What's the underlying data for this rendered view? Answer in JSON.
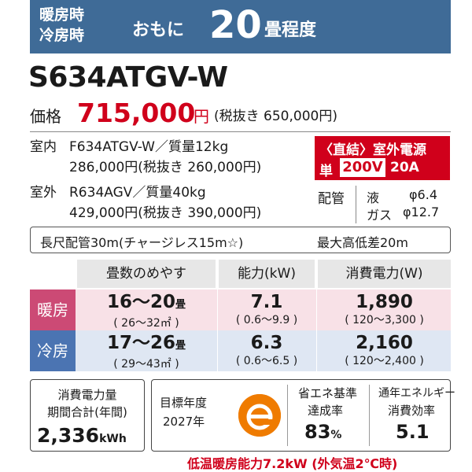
{
  "banner": {
    "heating": "暖房時",
    "cooling": "冷房時",
    "omoni": "おもに",
    "tatami": "20",
    "unit": "畳程度"
  },
  "model": "S634ATGV-W",
  "price": {
    "label": "価格",
    "value": "715,000",
    "yen": "円",
    "tax_excl": "(税抜き 650,000円)"
  },
  "indoor": {
    "label": "室内",
    "model_weight": "F634ATGV-W／質量12kg",
    "price": "286,000円(税抜き 260,000円)"
  },
  "outdoor": {
    "label": "室外",
    "model_weight": "R634AGV／質量40kg",
    "price": "429,000円(税抜き 390,000円)"
  },
  "power_supply": {
    "line1": "〈直結〉室外電源",
    "single": "単",
    "voltage": "200V",
    "ampere": "20A"
  },
  "piping": {
    "label": "配管",
    "liquid_label": "液",
    "liquid_value": "φ6.4",
    "gas_label": "ガス",
    "gas_value": "φ12.7"
  },
  "notes": {
    "long_piping": "長尺配管30m(チャージレス15m☆)",
    "max_height": "最大高低差20m"
  },
  "table": {
    "headers": [
      "畳数のめやす",
      "能力(kW)",
      "消費電力(W)"
    ],
    "rows": [
      {
        "label": "暖房",
        "tatami": "16〜20",
        "tatami_unit": "畳",
        "area": "( 26〜32㎡ )",
        "capacity": "7.1",
        "capacity_range": "( 0.6〜9.9 )",
        "power": "1,890",
        "power_range": "( 120〜3,300 )"
      },
      {
        "label": "冷房",
        "tatami": "17〜26",
        "tatami_unit": "畳",
        "area": "( 29〜43㎡ )",
        "capacity": "6.3",
        "capacity_range": "( 0.6〜6.5 )",
        "power": "2,160",
        "power_range": "( 120〜2,400 )"
      }
    ]
  },
  "annual": {
    "line1": "消費電力量",
    "line2": "期間合計(年間)",
    "value": "2,336",
    "unit": "kWh"
  },
  "standard": {
    "target_year_label": "目標年度",
    "target_year": "2027年",
    "achievement_label1": "省エネ基準",
    "achievement_label2": "達成率",
    "achievement_value": "83",
    "achievement_unit": "%",
    "efficiency_label1": "通年エネルギー",
    "efficiency_label2": "消費効率",
    "efficiency_value": "5.1",
    "emark_icon": "e-mark-icon",
    "emark_color": "#ef7b00"
  },
  "footer": "低温暖房能力7.2kW (外気温2℃時)"
}
